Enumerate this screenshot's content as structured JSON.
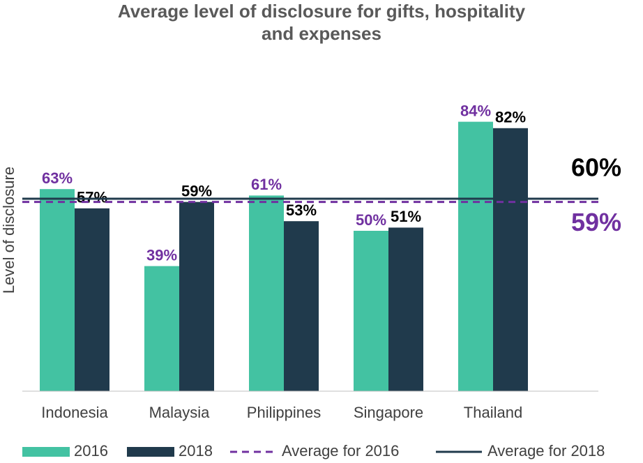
{
  "chart_data": {
    "type": "bar",
    "title": "Average level of disclosure for gifts, hospitality",
    "title_line2": "and expenses",
    "y_label": "Level of disclosure",
    "categories": [
      "Indonesia",
      "Malaysia",
      "Philippines",
      "Singapore",
      "Thailand"
    ],
    "series": [
      {
        "name": "2016",
        "color": "#43c2a2",
        "label_color": "#7030a0",
        "values": [
          63,
          39,
          61,
          50,
          84
        ],
        "value_labels": [
          "63%",
          "39%",
          "61%",
          "50%",
          "84%"
        ]
      },
      {
        "name": "2018",
        "color": "#203a4c",
        "label_color": "#000000",
        "values": [
          57,
          59,
          53,
          51,
          82
        ],
        "value_labels": [
          "57%",
          "59%",
          "53%",
          "51%",
          "82%"
        ]
      }
    ],
    "reference_lines": [
      {
        "name": "Average for 2016",
        "value": 59,
        "label": "59%",
        "color": "#7030a0",
        "style": "dashed"
      },
      {
        "name": "Average for 2018",
        "value": 60,
        "label": "60%",
        "color": "#203a4c",
        "style": "solid"
      }
    ],
    "ylim": [
      0,
      100
    ],
    "legend": "bottom"
  }
}
